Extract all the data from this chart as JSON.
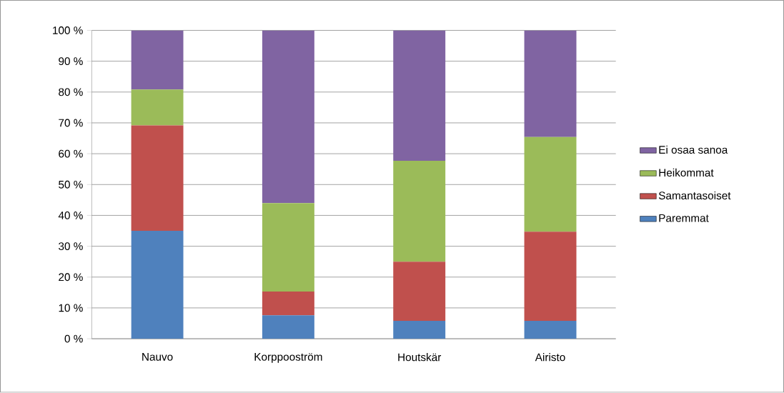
{
  "chart_data": {
    "type": "bar",
    "stacked": true,
    "categories": [
      "Nauvo",
      "Korppooström",
      "Houtskär",
      "Airisto"
    ],
    "series": [
      {
        "name": "Paremmat",
        "color": "#4f81bd",
        "values": [
          35.0,
          7.6,
          5.8,
          5.8
        ]
      },
      {
        "name": "Samantasoiset",
        "color": "#c0504d",
        "values": [
          34.2,
          7.7,
          19.2,
          28.9
        ]
      },
      {
        "name": "Heikommat",
        "color": "#9bbb59",
        "values": [
          11.6,
          28.7,
          32.7,
          30.7
        ]
      },
      {
        "name": "Ei osaa sanoa",
        "color": "#8064a2",
        "values": [
          19.2,
          56.0,
          42.3,
          34.6
        ]
      }
    ],
    "ylim": [
      0,
      100
    ],
    "yticks": [
      {
        "value": 0,
        "label": "0 %"
      },
      {
        "value": 10,
        "label": "10 %"
      },
      {
        "value": 20,
        "label": "20 %"
      },
      {
        "value": 30,
        "label": "30 %"
      },
      {
        "value": 40,
        "label": "40 %"
      },
      {
        "value": 50,
        "label": "50 %"
      },
      {
        "value": 60,
        "label": "60 %"
      },
      {
        "value": 70,
        "label": "70 %"
      },
      {
        "value": 80,
        "label": "80 %"
      },
      {
        "value": 90,
        "label": "90 %"
      },
      {
        "value": 100,
        "label": "100 %"
      }
    ],
    "grid": "y",
    "legend": "right"
  }
}
